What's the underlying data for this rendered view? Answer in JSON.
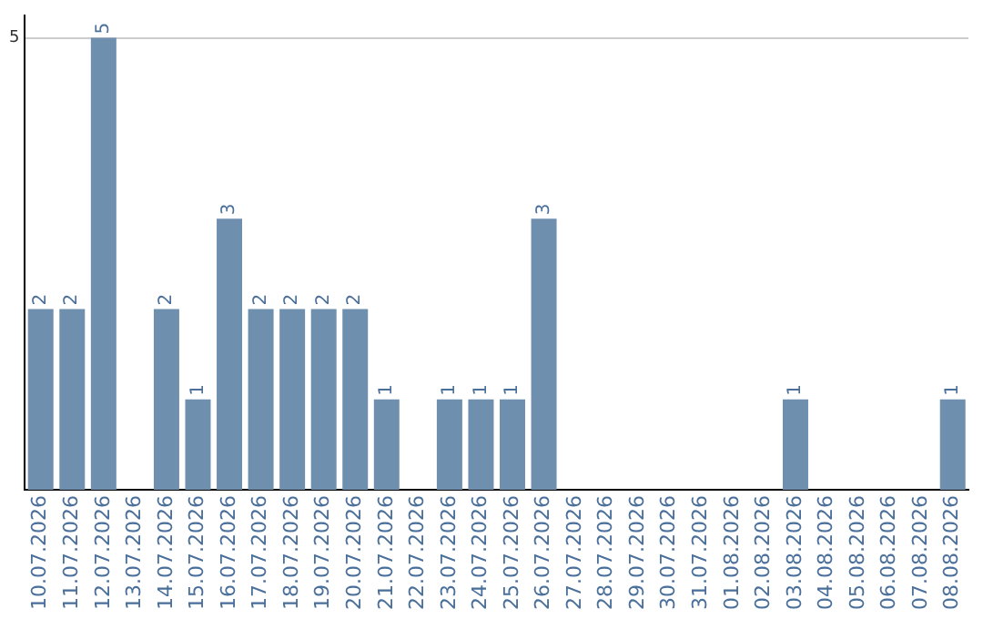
{
  "chart_data": {
    "type": "bar",
    "categories": [
      "10.07.2026",
      "11.07.2026",
      "12.07.2026",
      "13.07.2026",
      "14.07.2026",
      "15.07.2026",
      "16.07.2026",
      "17.07.2026",
      "18.07.2026",
      "19.07.2026",
      "20.07.2026",
      "21.07.2026",
      "22.07.2026",
      "23.07.2026",
      "24.07.2026",
      "25.07.2026",
      "26.07.2026",
      "27.07.2026",
      "28.07.2026",
      "29.07.2026",
      "30.07.2026",
      "31.07.2026",
      "01.08.2026",
      "02.08.2026",
      "03.08.2026",
      "04.08.2026",
      "05.08.2026",
      "06.08.2026",
      "07.08.2026",
      "08.08.2026"
    ],
    "values": [
      2,
      2,
      5,
      0,
      2,
      1,
      3,
      2,
      2,
      2,
      2,
      1,
      0,
      1,
      1,
      1,
      3,
      0,
      0,
      0,
      0,
      0,
      0,
      0,
      1,
      0,
      0,
      0,
      0,
      1
    ],
    "value_labels": [
      "2",
      "2",
      "5",
      null,
      "2",
      "1",
      "3",
      "2",
      "2",
      "2",
      "2",
      "1",
      null,
      "1",
      "1",
      "1",
      "3",
      null,
      null,
      null,
      null,
      null,
      null,
      null,
      "1",
      null,
      null,
      null,
      null,
      "1"
    ],
    "color": "#6e8fae",
    "ylim": [
      0,
      5.25
    ],
    "yticks": [
      5
    ],
    "grid": "y",
    "legend": false
  }
}
